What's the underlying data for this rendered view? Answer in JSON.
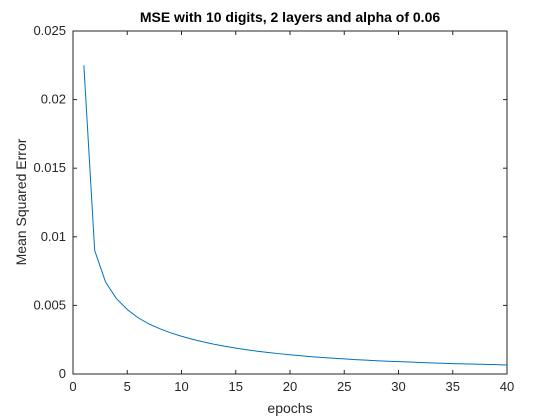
{
  "chart_data": {
    "type": "line",
    "title": "MSE with 10 digits, 2 layers and alpha of 0.06",
    "xlabel": "epochs",
    "ylabel": "Mean Squared Error",
    "xlim": [
      0,
      40
    ],
    "ylim": [
      0,
      0.025
    ],
    "grid": false,
    "x_ticks": [
      0,
      5,
      10,
      15,
      20,
      25,
      30,
      35,
      40
    ],
    "x_tick_labels": [
      "0",
      "5",
      "10",
      "15",
      "20",
      "25",
      "30",
      "35",
      "40"
    ],
    "y_ticks": [
      0,
      0.005,
      0.01,
      0.015,
      0.02,
      0.025
    ],
    "y_tick_labels": [
      "0",
      "0.005",
      "0.01",
      "0.015",
      "0.02",
      "0.025"
    ],
    "series": [
      {
        "color": "#0072BD",
        "x": [
          1,
          2,
          3,
          4,
          5,
          6,
          7,
          8,
          9,
          10,
          11,
          12,
          13,
          14,
          15,
          16,
          17,
          18,
          19,
          20,
          21,
          22,
          23,
          24,
          25,
          26,
          27,
          28,
          29,
          30,
          31,
          32,
          33,
          34,
          35,
          36,
          37,
          38,
          39,
          40
        ],
        "y": [
          0.0225,
          0.009,
          0.0067,
          0.0055,
          0.0047,
          0.0041,
          0.00365,
          0.0033,
          0.003,
          0.00275,
          0.00253,
          0.00234,
          0.00217,
          0.00202,
          0.00189,
          0.00177,
          0.00166,
          0.00157,
          0.00148,
          0.0014,
          0.00133,
          0.00126,
          0.0012,
          0.00115,
          0.0011,
          0.00105,
          0.00101,
          0.00097,
          0.00093,
          0.0009,
          0.00087,
          0.00084,
          0.00081,
          0.00078,
          0.00076,
          0.00074,
          0.00072,
          0.0007,
          0.00068,
          0.00066
        ]
      }
    ]
  }
}
